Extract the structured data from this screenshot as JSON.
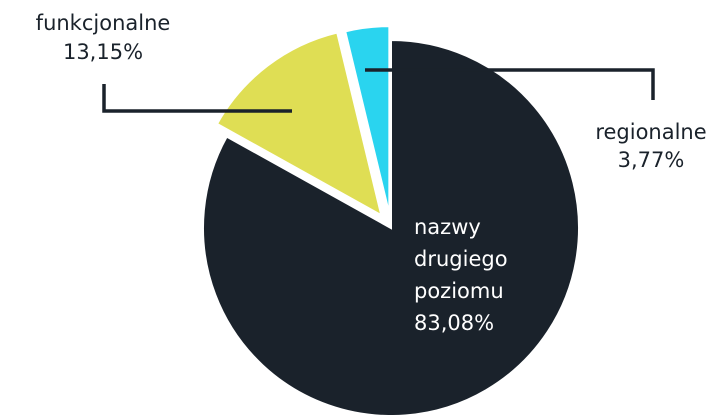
{
  "chart_data": {
    "type": "pie",
    "title": "",
    "slices": [
      {
        "label_lines": [
          "nazwy",
          "drugiego",
          "poziomu"
        ],
        "value_text": "83,08%",
        "value": 83.08,
        "color": "#1a222b"
      },
      {
        "label_lines": [
          "funkcjonalne"
        ],
        "value_text": "13,15%",
        "value": 13.15,
        "color": "#dfde54"
      },
      {
        "label_lines": [
          "regionalne"
        ],
        "value_text": "3,77%",
        "value": 3.77,
        "color": "#2ad4ef"
      }
    ],
    "label_color_on_dark": "#ffffff",
    "label_color": "#1a222b"
  }
}
